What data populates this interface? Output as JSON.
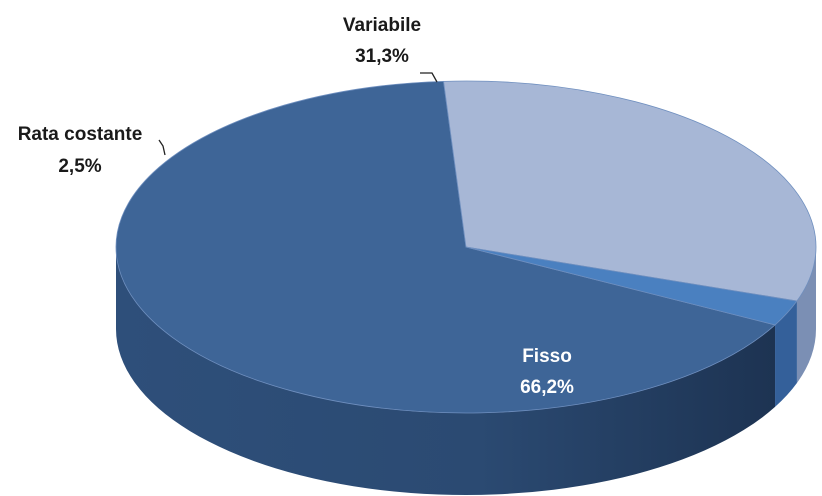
{
  "chart_data": {
    "type": "pie",
    "style": "3d",
    "slices": [
      {
        "name": "Fisso",
        "value": 66.2,
        "label": "66,2%",
        "color": "#3e6597",
        "side_color": "#2b4a72"
      },
      {
        "name": "Variabile",
        "value": 31.3,
        "label": "31,3%",
        "color": "#a7b7d6",
        "side_color": "#7b8fb4"
      },
      {
        "name": "Rata costante",
        "value": 2.5,
        "label": "2,5%",
        "color": "#4a80c0",
        "side_color": "#34609a"
      }
    ],
    "title": "",
    "legend": "none"
  }
}
